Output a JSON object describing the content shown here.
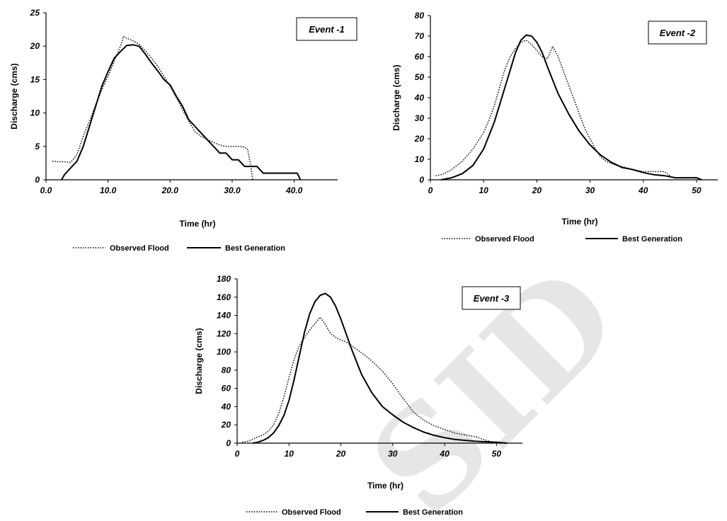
{
  "watermark": "SID",
  "chart_data": [
    {
      "type": "line",
      "annotation": "Event -1",
      "xlabel": "Time (hr)",
      "ylabel": "Discharge (cms)",
      "xlim": [
        0,
        47
      ],
      "ylim": [
        0,
        25
      ],
      "x_ticks": [
        0,
        10,
        20,
        30,
        40
      ],
      "x_tick_labels": [
        "0.0",
        "10.0",
        "20.0",
        "30.0",
        "40.0"
      ],
      "y_ticks": [
        0,
        5,
        10,
        15,
        20,
        25
      ],
      "y_tick_labels": [
        "0",
        "5",
        "10",
        "15",
        "20",
        "25"
      ],
      "legend": "bottom",
      "series": [
        {
          "name": "Observed Flood",
          "style": "dotted",
          "x": [
            1,
            2,
            3,
            4,
            5,
            6,
            7,
            8,
            9,
            10,
            11,
            12,
            12.5,
            13,
            14,
            15,
            16,
            17,
            18,
            19,
            20,
            21,
            22,
            23,
            24,
            25,
            26,
            27,
            28,
            29,
            30,
            31,
            32,
            32.5,
            33,
            33.3
          ],
          "y": [
            2.8,
            2.7,
            2.7,
            2.6,
            3.8,
            6.5,
            8.8,
            11.2,
            13.5,
            15.5,
            17.8,
            20,
            21.5,
            21.2,
            20.8,
            20.3,
            19.3,
            18.2,
            17,
            15.5,
            14,
            12.3,
            10.5,
            8.8,
            7.2,
            6.5,
            6,
            5.6,
            5.2,
            5,
            5,
            5,
            4.9,
            4.5,
            2,
            0
          ]
        },
        {
          "name": "Best Generation",
          "style": "solid",
          "x": [
            2.5,
            3,
            4,
            5,
            6,
            7,
            8,
            9,
            10,
            11,
            12,
            13,
            14,
            15,
            16,
            17,
            18,
            19,
            20,
            21,
            22,
            23,
            24,
            25,
            26,
            27,
            28,
            29,
            30,
            31,
            32,
            33,
            34,
            35,
            36,
            37,
            38,
            39,
            40,
            40.5,
            41
          ],
          "y": [
            0,
            0.8,
            1.8,
            2.8,
            5,
            8,
            11,
            14,
            16.2,
            18.2,
            19.2,
            20.1,
            20.2,
            20,
            18.8,
            17.5,
            16.3,
            15,
            14.2,
            12.5,
            11,
            9,
            8,
            7,
            6,
            5,
            4,
            4,
            3,
            3,
            2,
            2,
            2,
            1,
            1,
            1,
            1,
            1,
            1,
            1,
            0
          ]
        }
      ]
    },
    {
      "type": "line",
      "annotation": "Event -2",
      "xlabel": "Time (hr)",
      "ylabel": "Discharge  (cms)",
      "xlim": [
        0,
        54
      ],
      "ylim": [
        0,
        80
      ],
      "x_ticks": [
        0,
        10,
        20,
        30,
        40,
        50
      ],
      "x_tick_labels": [
        "0",
        "10",
        "20",
        "30",
        "40",
        "50"
      ],
      "y_ticks": [
        0,
        10,
        20,
        30,
        40,
        50,
        60,
        70,
        80
      ],
      "y_tick_labels": [
        "0",
        "10",
        "20",
        "30",
        "40",
        "50",
        "60",
        "70",
        "80"
      ],
      "legend": "bottom",
      "series": [
        {
          "name": "Observed Flood",
          "style": "dotted",
          "x": [
            1,
            2,
            3,
            4,
            5,
            6,
            7,
            8,
            9,
            10,
            11,
            12,
            13,
            14,
            15,
            16,
            17,
            18,
            19,
            20,
            21,
            22,
            23,
            24,
            25,
            26,
            27,
            28,
            29,
            30,
            31,
            32,
            33,
            34,
            35,
            36,
            38,
            40,
            42,
            44,
            45
          ],
          "y": [
            2,
            2.5,
            3.5,
            5,
            7,
            9,
            12,
            15,
            19,
            23,
            29,
            36,
            45,
            54,
            60,
            64,
            67,
            68,
            66,
            63,
            60,
            59,
            65,
            60,
            53,
            46,
            39,
            32,
            25,
            20,
            15,
            11,
            9,
            8,
            7,
            6.5,
            5,
            4,
            4,
            4,
            2
          ]
        },
        {
          "name": "Best Generation",
          "style": "solid",
          "x": [
            2,
            4,
            6,
            8,
            10,
            12,
            14,
            16,
            17,
            18,
            19,
            20,
            21,
            22,
            24,
            26,
            28,
            30,
            32,
            34,
            36,
            38,
            40,
            42,
            44,
            46,
            48,
            50,
            50.5,
            51
          ],
          "y": [
            0,
            1,
            3,
            7,
            15,
            28,
            45,
            62,
            68,
            70.5,
            70,
            67,
            62,
            55,
            42,
            32,
            23.5,
            17,
            12,
            8.5,
            6,
            5,
            3.5,
            2.5,
            2,
            1,
            1,
            1,
            0.5,
            0
          ]
        }
      ]
    },
    {
      "type": "line",
      "annotation": "Event -3",
      "xlabel": "Time (hr)",
      "ylabel": "Discharge  (cms)",
      "xlim": [
        0,
        55
      ],
      "ylim": [
        0,
        180
      ],
      "x_ticks": [
        0,
        10,
        20,
        30,
        40,
        50
      ],
      "x_tick_labels": [
        "0",
        "10",
        "20",
        "30",
        "40",
        "50"
      ],
      "y_ticks": [
        0,
        20,
        40,
        60,
        80,
        100,
        120,
        140,
        160,
        180
      ],
      "y_tick_labels": [
        "0",
        "20",
        "40",
        "60",
        "80",
        "100",
        "120",
        "140",
        "160",
        "180"
      ],
      "legend": "bottom",
      "series": [
        {
          "name": "Observed Flood",
          "style": "dotted",
          "x": [
            1,
            2,
            3,
            4,
            5,
            6,
            7,
            8,
            9,
            10,
            11,
            12,
            13,
            14,
            15,
            16,
            17,
            18,
            19,
            20,
            21,
            22,
            24,
            26,
            28,
            30,
            32,
            34,
            36,
            38,
            40,
            42,
            44,
            46,
            48,
            50
          ],
          "y": [
            1,
            2,
            4,
            7,
            9,
            13,
            20,
            32,
            50,
            72,
            92,
            107,
            116,
            124,
            131,
            138,
            130,
            120,
            116,
            113,
            111,
            107,
            99,
            90,
            79,
            65,
            49,
            34,
            25,
            19,
            15,
            11,
            9,
            7,
            3,
            0
          ]
        },
        {
          "name": "Best Generation",
          "style": "solid",
          "x": [
            3,
            4,
            5,
            6,
            7,
            8,
            9,
            10,
            11,
            12,
            13,
            14,
            15,
            16,
            17,
            18,
            19,
            20,
            21,
            22,
            24,
            26,
            28,
            30,
            32,
            34,
            36,
            38,
            40,
            42,
            44,
            46,
            48,
            50,
            52
          ],
          "y": [
            0,
            1,
            3,
            6,
            11,
            19,
            30,
            47,
            70,
            96,
            122,
            142,
            155,
            162,
            164,
            160,
            150,
            136,
            120,
            104,
            75,
            55,
            40,
            31,
            23,
            17,
            12,
            8.5,
            6,
            4,
            3,
            2,
            1.5,
            1,
            0
          ]
        }
      ]
    }
  ]
}
